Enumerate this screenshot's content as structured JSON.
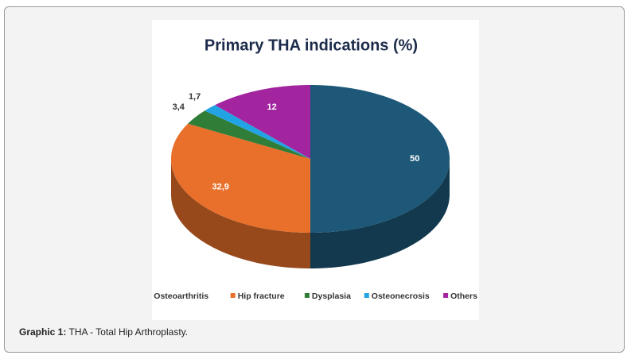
{
  "chart_data": {
    "type": "pie3d",
    "title": "Primary THA indications (%)",
    "categories": [
      "Osteoarthritis",
      "Hip fracture",
      "Dysplasia",
      "Osteonecrosis",
      "Others"
    ],
    "values": [
      50,
      32.9,
      3.4,
      1.7,
      12
    ],
    "value_labels": [
      "50",
      "32,9",
      "3,4",
      "1,7",
      "12"
    ],
    "colors": [
      "#1d5878",
      "#e9702b",
      "#2f7d36",
      "#22a3e3",
      "#a2259f"
    ],
    "legend": "bottom"
  },
  "caption": {
    "label": "Graphic 1:",
    "text": "THA - Total Hip Arthroplasty."
  }
}
